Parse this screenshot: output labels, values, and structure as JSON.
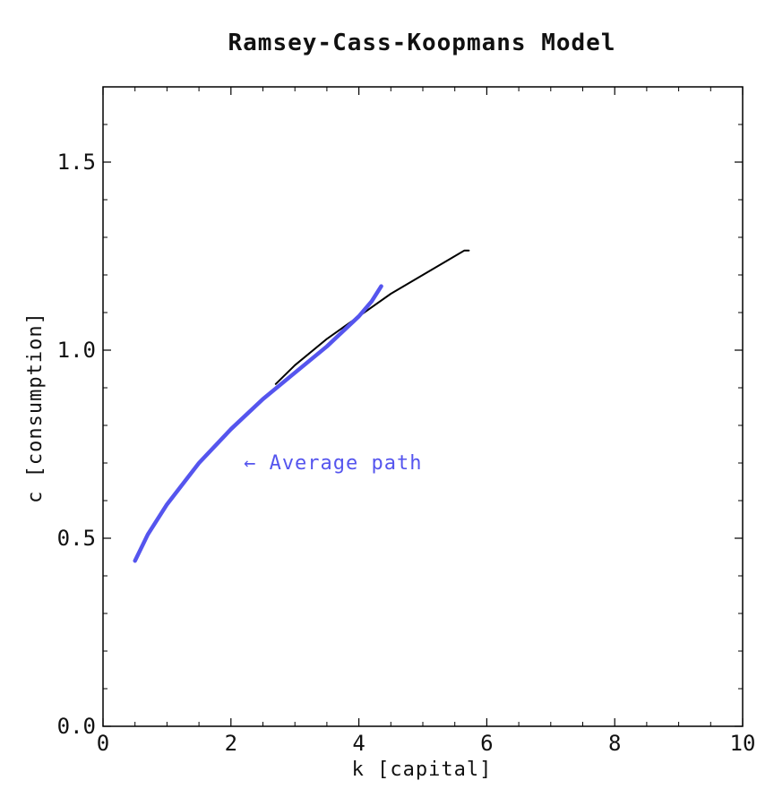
{
  "chart_data": {
    "type": "line",
    "title": "Ramsey-Cass-Koopmans Model",
    "xlabel": "k [capital]",
    "ylabel": "c [consumption]",
    "xlim": [
      0,
      10
    ],
    "ylim": [
      0,
      1.7
    ],
    "x_ticks": [
      0,
      2,
      4,
      6,
      8,
      10
    ],
    "x_tick_labels": [
      "0",
      "2",
      "4",
      "6",
      "8",
      "10"
    ],
    "y_ticks": [
      0.0,
      0.5,
      1.0,
      1.5
    ],
    "y_tick_labels": [
      "0.0",
      "0.5",
      "1.0",
      "1.5"
    ],
    "grid": false,
    "series": [
      {
        "color": "#000000",
        "points": [
          [
            2.7,
            0.91
          ],
          [
            3.0,
            0.96
          ],
          [
            3.5,
            1.03
          ],
          [
            4.0,
            1.09
          ],
          [
            4.5,
            1.15
          ],
          [
            5.0,
            1.2
          ],
          [
            5.5,
            1.25
          ],
          [
            5.65,
            1.265
          ],
          [
            5.72,
            1.265
          ]
        ]
      },
      {
        "color": "#5555ee",
        "points": [
          [
            0.5,
            0.44
          ],
          [
            0.7,
            0.51
          ],
          [
            1.0,
            0.59
          ],
          [
            1.5,
            0.7
          ],
          [
            2.0,
            0.79
          ],
          [
            2.5,
            0.87
          ],
          [
            3.0,
            0.94
          ],
          [
            3.5,
            1.01
          ],
          [
            4.0,
            1.09
          ],
          [
            4.2,
            1.13
          ],
          [
            4.35,
            1.17
          ]
        ]
      }
    ],
    "annotations": [
      {
        "text": "← Average path",
        "x": 2.2,
        "y": 0.7,
        "color": "#5555ee"
      }
    ]
  }
}
